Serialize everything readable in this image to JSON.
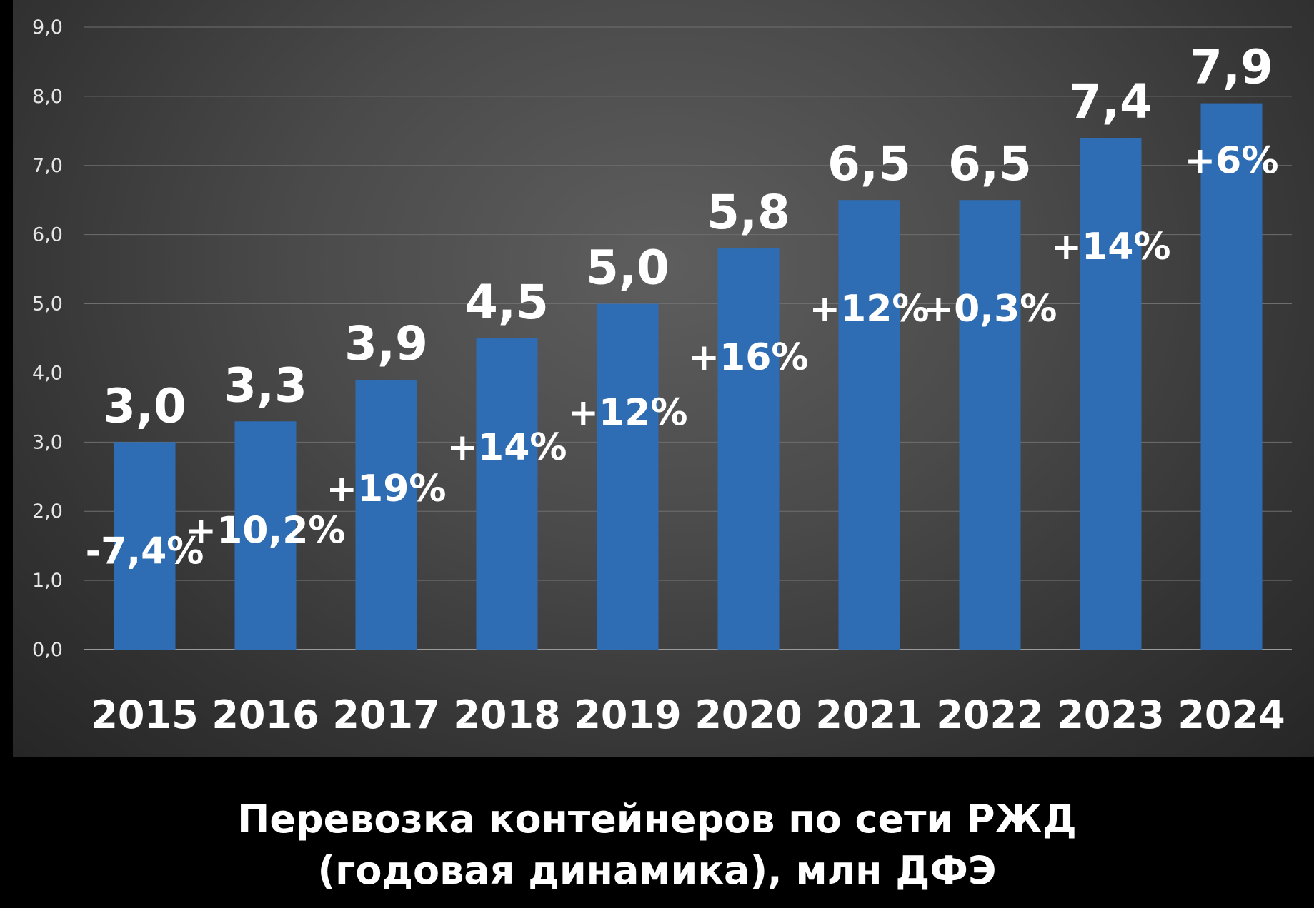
{
  "chart_data": {
    "type": "bar",
    "title": [
      "Перевозка контейнеров по сети РЖД",
      "(годовая динамика), млн ДФЭ"
    ],
    "categories": [
      "2015",
      "2016",
      "2017",
      "2018",
      "2019",
      "2020",
      "2021",
      "2022",
      "2023",
      "2024"
    ],
    "values": [
      3.0,
      3.3,
      3.9,
      4.5,
      5.0,
      5.8,
      6.5,
      6.5,
      7.4,
      7.9
    ],
    "value_labels": [
      "3,0",
      "3,3",
      "3,9",
      "4,5",
      "5,0",
      "5,8",
      "6,5",
      "6,5",
      "7,4",
      "7,9"
    ],
    "change_labels": [
      "-7,4%",
      "+10,2%",
      "+19%",
      "+14%",
      "+12%",
      "+16%",
      "+12%",
      "+0,3%",
      "+14%",
      "+6%"
    ],
    "yticks": [
      "0,0",
      "1,0",
      "2,0",
      "3,0",
      "4,0",
      "5,0",
      "6,0",
      "7,0",
      "8,0",
      "9,0"
    ],
    "ylim": [
      0,
      9
    ],
    "grid": true,
    "colors": {
      "bar": "#2e6db4",
      "grid": "#6e6e6e",
      "axis": "#9a9a9a",
      "text": "#ffffff",
      "tick_text": "#e6e6e6"
    }
  }
}
